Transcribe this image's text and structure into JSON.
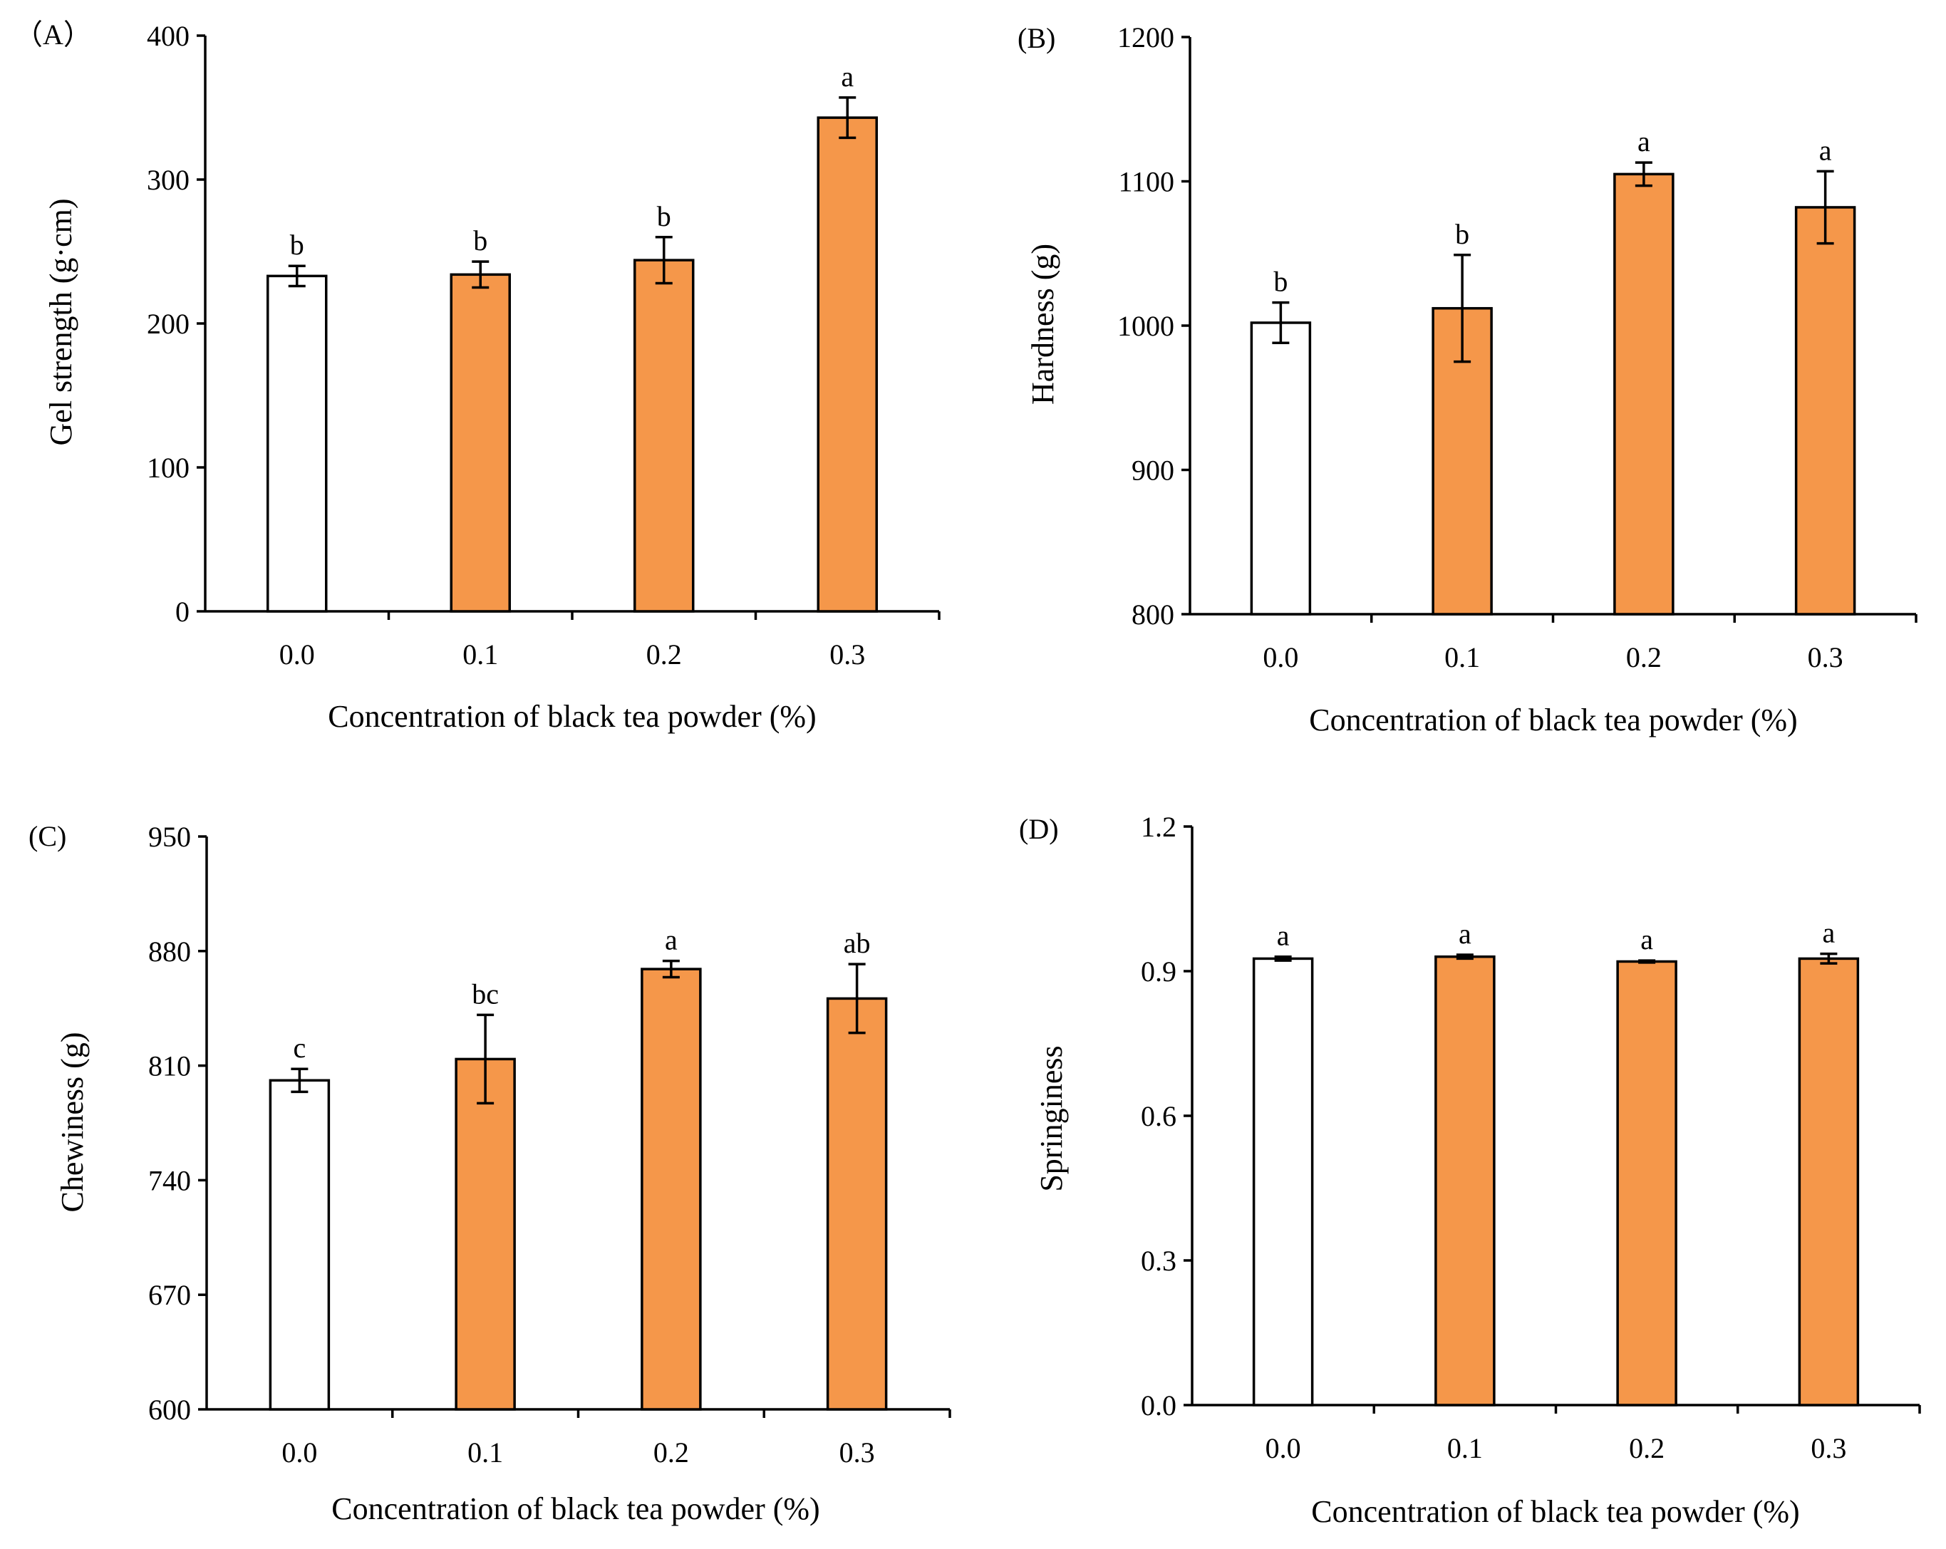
{
  "figure": {
    "panels": [
      "A",
      "B",
      "C",
      "D"
    ]
  },
  "colors": {
    "control_fill": "#ffffff",
    "treatment_fill": "#f5974a",
    "stroke": "#000000"
  },
  "chart_data": [
    {
      "type": "bar",
      "panel_label": "（A）",
      "title": "",
      "xlabel": "Concentration of black tea powder (%)",
      "ylabel": "Gel strength (g·cm)",
      "categories": [
        "0.0",
        "0.1",
        "0.2",
        "0.3"
      ],
      "values": [
        233,
        234,
        244,
        343
      ],
      "errors": [
        7,
        9,
        16,
        14
      ],
      "significance": [
        "b",
        "b",
        "b",
        "a"
      ],
      "ylim": [
        0,
        400
      ],
      "yticks": [
        0,
        100,
        200,
        300,
        400
      ],
      "ytick_labels": [
        "0",
        "100",
        "200",
        "300",
        "400"
      ]
    },
    {
      "type": "bar",
      "panel_label": "(B)",
      "title": "",
      "xlabel": "Concentration of black tea powder (%)",
      "ylabel": "Hardness (g)",
      "categories": [
        "0.0",
        "0.1",
        "0.2",
        "0.3"
      ],
      "values": [
        1002,
        1012,
        1105,
        1082
      ],
      "errors": [
        14,
        37,
        8,
        25
      ],
      "significance": [
        "b",
        "b",
        "a",
        "a"
      ],
      "ylim": [
        800,
        1200
      ],
      "yticks": [
        800,
        900,
        1000,
        1100,
        1200
      ],
      "ytick_labels": [
        "800",
        "900",
        "1000",
        "1100",
        "1200"
      ]
    },
    {
      "type": "bar",
      "panel_label": "(C)",
      "title": "",
      "xlabel": "Concentration of black tea powder (%)",
      "ylabel": "Chewiness (g)",
      "categories": [
        "0.0",
        "0.1",
        "0.2",
        "0.3"
      ],
      "values": [
        801,
        814,
        869,
        851
      ],
      "errors": [
        7,
        27,
        5,
        21
      ],
      "significance": [
        "c",
        "bc",
        "a",
        "ab"
      ],
      "ylim": [
        600,
        950
      ],
      "yticks": [
        600,
        670,
        740,
        810,
        880,
        950
      ],
      "ytick_labels": [
        "600",
        "670",
        "740",
        "810",
        "880",
        "950"
      ]
    },
    {
      "type": "bar",
      "panel_label": "(D)",
      "title": "",
      "xlabel": "Concentration of black tea powder (%)",
      "ylabel": "Springiness",
      "categories": [
        "0.0",
        "0.1",
        "0.2",
        "0.3"
      ],
      "values": [
        0.926,
        0.93,
        0.92,
        0.926
      ],
      "errors": [
        0.004,
        0.004,
        0.002,
        0.01
      ],
      "significance": [
        "a",
        "a",
        "a",
        "a"
      ],
      "ylim": [
        0,
        1.2
      ],
      "yticks": [
        0,
        0.3,
        0.6,
        0.9,
        1.2
      ],
      "ytick_labels": [
        "0.0",
        "0.3",
        "0.6",
        "0.9",
        "1.2"
      ]
    }
  ]
}
